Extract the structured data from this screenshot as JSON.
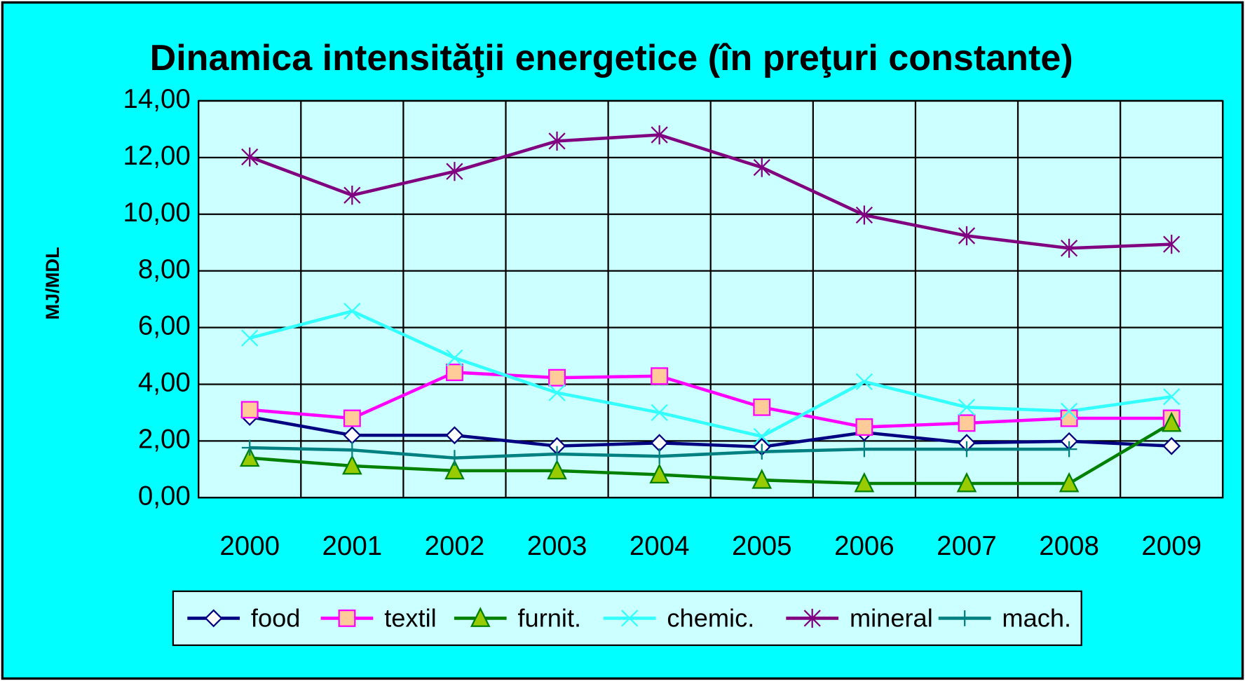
{
  "chart_data": {
    "type": "line",
    "title": "Dinamica intensităţii energetice (în preţuri constante)",
    "y_label": "MJ/MDL",
    "categories": [
      "2000",
      "2001",
      "2002",
      "2003",
      "2004",
      "2005",
      "2006",
      "2007",
      "2008",
      "2009"
    ],
    "series": [
      {
        "name": "food",
        "color": "#000080",
        "marker": "diamond",
        "values": [
          2.85,
          2.2,
          2.2,
          1.82,
          1.93,
          1.79,
          2.3,
          1.93,
          1.99,
          1.82
        ]
      },
      {
        "name": "textil",
        "color": "#ff00ff",
        "marker": "square",
        "values": [
          3.1,
          2.8,
          4.42,
          4.23,
          4.29,
          3.19,
          2.49,
          2.63,
          2.8,
          2.8
        ]
      },
      {
        "name": "furnit.",
        "color": "#008000",
        "marker": "triangle",
        "values": [
          1.4,
          1.12,
          0.95,
          0.95,
          0.81,
          0.62,
          0.5,
          0.5,
          0.5,
          2.63
        ]
      },
      {
        "name": "chemic.",
        "color": "#33ffff",
        "marker": "x",
        "values": [
          5.63,
          6.58,
          4.93,
          3.7,
          3.0,
          2.16,
          4.09,
          3.19,
          3.05,
          3.56
        ]
      },
      {
        "name": "mineral",
        "color": "#800080",
        "marker": "star",
        "values": [
          12.02,
          10.67,
          11.51,
          12.58,
          12.8,
          11.65,
          9.97,
          9.24,
          8.8,
          8.94
        ]
      },
      {
        "name": "mach.",
        "color": "#008080",
        "marker": "plus",
        "values": [
          1.76,
          1.68,
          1.4,
          1.54,
          1.46,
          1.62,
          1.71,
          1.71,
          1.71,
          null
        ]
      }
    ],
    "ylim": [
      0,
      14
    ],
    "yticks": [
      {
        "value": 0,
        "label": "0,00"
      },
      {
        "value": 2,
        "label": "2,00"
      },
      {
        "value": 4,
        "label": "4,00"
      },
      {
        "value": 6,
        "label": "6,00"
      },
      {
        "value": 8,
        "label": "8,00"
      },
      {
        "value": 10,
        "label": "10,00"
      },
      {
        "value": 12,
        "label": "12,00"
      },
      {
        "value": 14,
        "label": "14,00"
      }
    ],
    "grid": true,
    "legend": "bottom"
  }
}
